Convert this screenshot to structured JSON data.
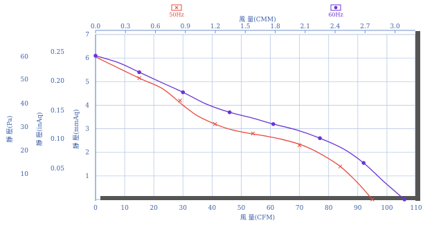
{
  "chart_data": {
    "type": "line",
    "legend": {
      "position": "top-center",
      "entries": [
        {
          "name": "50Hz",
          "color": "#e8483c",
          "marker": "x"
        },
        {
          "name": "60Hz",
          "color": "#6a35d4",
          "marker": "dot"
        }
      ]
    },
    "x_bottom": {
      "label": "風 量(CFM)",
      "min": 0,
      "max": 110,
      "ticks": [
        "0",
        "10",
        "20",
        "30",
        "40",
        "50",
        "60",
        "70",
        "80",
        "90",
        "100",
        "110"
      ]
    },
    "x_top": {
      "label": "風 量(CMM)",
      "min": 0,
      "max": 3.1,
      "ticks": [
        "0.0",
        "0.3",
        "0.6",
        "0.9",
        "1.2",
        "1.5",
        "1.8",
        "2.1",
        "2.4",
        "2.7",
        "3.0"
      ]
    },
    "y_mmaq": {
      "label": "靜 壓(mmAq)",
      "min": 0,
      "max": 7,
      "ticks": [
        "1",
        "2",
        "3",
        "4",
        "5",
        "6",
        "7"
      ]
    },
    "y_inaq": {
      "label": "靜 壓(inAq)",
      "ticks": [
        "0.05",
        "0.10",
        "0.15",
        "0.20",
        "0.25"
      ]
    },
    "y_pa": {
      "label": "靜 壓(Pa)",
      "ticks": [
        "10",
        "20",
        "30",
        "40",
        "50",
        "60"
      ]
    },
    "grid": true,
    "series": [
      {
        "name": "50Hz",
        "color": "#e8483c",
        "x": [
          0,
          15,
          23,
          30,
          35,
          42,
          47,
          53,
          58,
          64,
          71,
          77,
          84,
          90,
          95
        ],
        "y": [
          6.05,
          5.15,
          4.7,
          4.0,
          3.55,
          3.15,
          2.95,
          2.8,
          2.7,
          2.55,
          2.3,
          1.95,
          1.4,
          0.7,
          0.0
        ],
        "markers": [
          [
            15,
            5.15
          ],
          [
            29,
            4.2
          ],
          [
            41,
            3.2
          ],
          [
            54,
            2.8
          ],
          [
            70,
            2.3
          ],
          [
            84,
            1.4
          ],
          [
            95,
            0.0
          ]
        ]
      },
      {
        "name": "60Hz",
        "color": "#6a35d4",
        "x": [
          0,
          8,
          15,
          22,
          30,
          38,
          46,
          54,
          61,
          69,
          77,
          85,
          92,
          99,
          106
        ],
        "y": [
          6.1,
          5.8,
          5.4,
          5.0,
          4.55,
          4.05,
          3.7,
          3.45,
          3.2,
          2.95,
          2.6,
          2.15,
          1.55,
          0.75,
          0.0
        ],
        "markers": [
          [
            0,
            6.1
          ],
          [
            15,
            5.4
          ],
          [
            30,
            4.55
          ],
          [
            46,
            3.7
          ],
          [
            61,
            3.2
          ],
          [
            77,
            2.6
          ],
          [
            92,
            1.55
          ],
          [
            106,
            0.0
          ]
        ]
      }
    ]
  }
}
